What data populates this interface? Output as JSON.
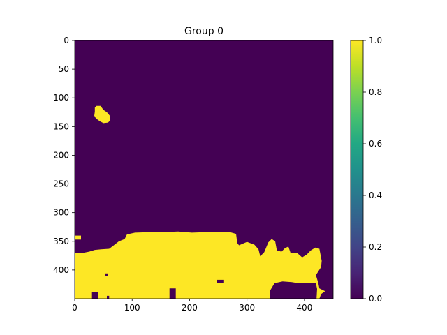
{
  "chart_data": {
    "type": "heatmap",
    "title": "Group 0",
    "xlabel": "",
    "ylabel": "",
    "image_width": 450,
    "image_height": 450,
    "xlim": [
      0,
      450
    ],
    "ylim": [
      450,
      0
    ],
    "x_ticks": [
      0,
      100,
      200,
      300,
      400
    ],
    "y_ticks": [
      0,
      50,
      100,
      150,
      200,
      250,
      300,
      350,
      400
    ],
    "value_range": [
      0,
      1
    ],
    "colormap": {
      "low": "#440154",
      "high": "#fde725"
    },
    "colorbar": {
      "ticks": [
        "0.0",
        "0.2",
        "0.4",
        "0.6",
        "0.8",
        "1.0"
      ]
    },
    "regions_value_1": [
      {
        "name": "small-blob",
        "outline": [
          [
            35,
            117
          ],
          [
            38,
            114
          ],
          [
            45,
            114
          ],
          [
            50,
            121
          ],
          [
            56,
            125
          ],
          [
            61,
            131
          ],
          [
            62,
            139
          ],
          [
            58,
            143
          ],
          [
            50,
            144
          ],
          [
            44,
            141
          ],
          [
            37,
            136
          ],
          [
            34,
            131
          ],
          [
            35,
            124
          ]
        ]
      },
      {
        "name": "left-speck",
        "outline": [
          [
            0,
            340
          ],
          [
            11,
            340
          ],
          [
            11,
            347
          ],
          [
            0,
            347
          ]
        ]
      },
      {
        "name": "bottom-mass",
        "outline": [
          [
            0,
            380
          ],
          [
            0,
            450
          ],
          [
            30,
            450
          ],
          [
            30,
            439
          ],
          [
            41,
            439
          ],
          [
            41,
            450
          ],
          [
            56,
            450
          ],
          [
            56,
            445
          ],
          [
            60,
            445
          ],
          [
            60,
            450
          ],
          [
            165,
            450
          ],
          [
            165,
            432
          ],
          [
            176,
            432
          ],
          [
            176,
            450
          ],
          [
            340,
            450
          ],
          [
            340,
            436
          ],
          [
            348,
            423
          ],
          [
            362,
            420
          ],
          [
            378,
            421
          ],
          [
            389,
            423
          ],
          [
            420,
            423
          ],
          [
            422,
            433
          ],
          [
            421,
            450
          ],
          [
            426,
            450
          ],
          [
            429,
            442
          ],
          [
            436,
            437
          ],
          [
            426,
            432
          ],
          [
            424,
            422
          ],
          [
            420,
            409
          ],
          [
            429,
            395
          ],
          [
            430,
            384
          ],
          [
            426,
            363
          ],
          [
            419,
            361
          ],
          [
            411,
            366
          ],
          [
            404,
            373
          ],
          [
            396,
            378
          ],
          [
            388,
            371
          ],
          [
            376,
            371
          ],
          [
            372,
            359
          ],
          [
            366,
            362
          ],
          [
            360,
            368
          ],
          [
            352,
            366
          ],
          [
            349,
            350
          ],
          [
            343,
            346
          ],
          [
            337,
            352
          ],
          [
            330,
            369
          ],
          [
            323,
            376
          ],
          [
            320,
            364
          ],
          [
            313,
            356
          ],
          [
            300,
            351
          ],
          [
            286,
            357
          ],
          [
            283,
            353
          ],
          [
            281,
            337
          ],
          [
            270,
            334
          ],
          [
            255,
            334
          ],
          [
            230,
            334
          ],
          [
            204,
            335
          ],
          [
            180,
            333
          ],
          [
            155,
            334
          ],
          [
            132,
            334
          ],
          [
            105,
            335
          ],
          [
            91,
            338
          ],
          [
            87,
            346
          ],
          [
            77,
            350
          ],
          [
            68,
            357
          ],
          [
            60,
            363
          ],
          [
            46,
            364
          ],
          [
            35,
            365
          ],
          [
            25,
            368
          ],
          [
            15,
            370
          ],
          [
            7,
            371
          ],
          [
            0,
            371
          ]
        ]
      }
    ],
    "holes_value_0": [
      {
        "name": "bottom-right-gap",
        "outline": [
          [
            342,
            450
          ],
          [
            342,
            437
          ],
          [
            349,
            426
          ],
          [
            364,
            423
          ],
          [
            380,
            424
          ],
          [
            392,
            426
          ],
          [
            415,
            426
          ],
          [
            420,
            434
          ],
          [
            418,
            450
          ]
        ]
      },
      {
        "name": "mid-speck",
        "outline": [
          [
            248,
            417
          ],
          [
            260,
            417
          ],
          [
            260,
            423
          ],
          [
            248,
            423
          ]
        ]
      },
      {
        "name": "left-speck-hole",
        "outline": [
          [
            53,
            406
          ],
          [
            58,
            406
          ],
          [
            58,
            411
          ],
          [
            53,
            411
          ]
        ]
      }
    ]
  }
}
